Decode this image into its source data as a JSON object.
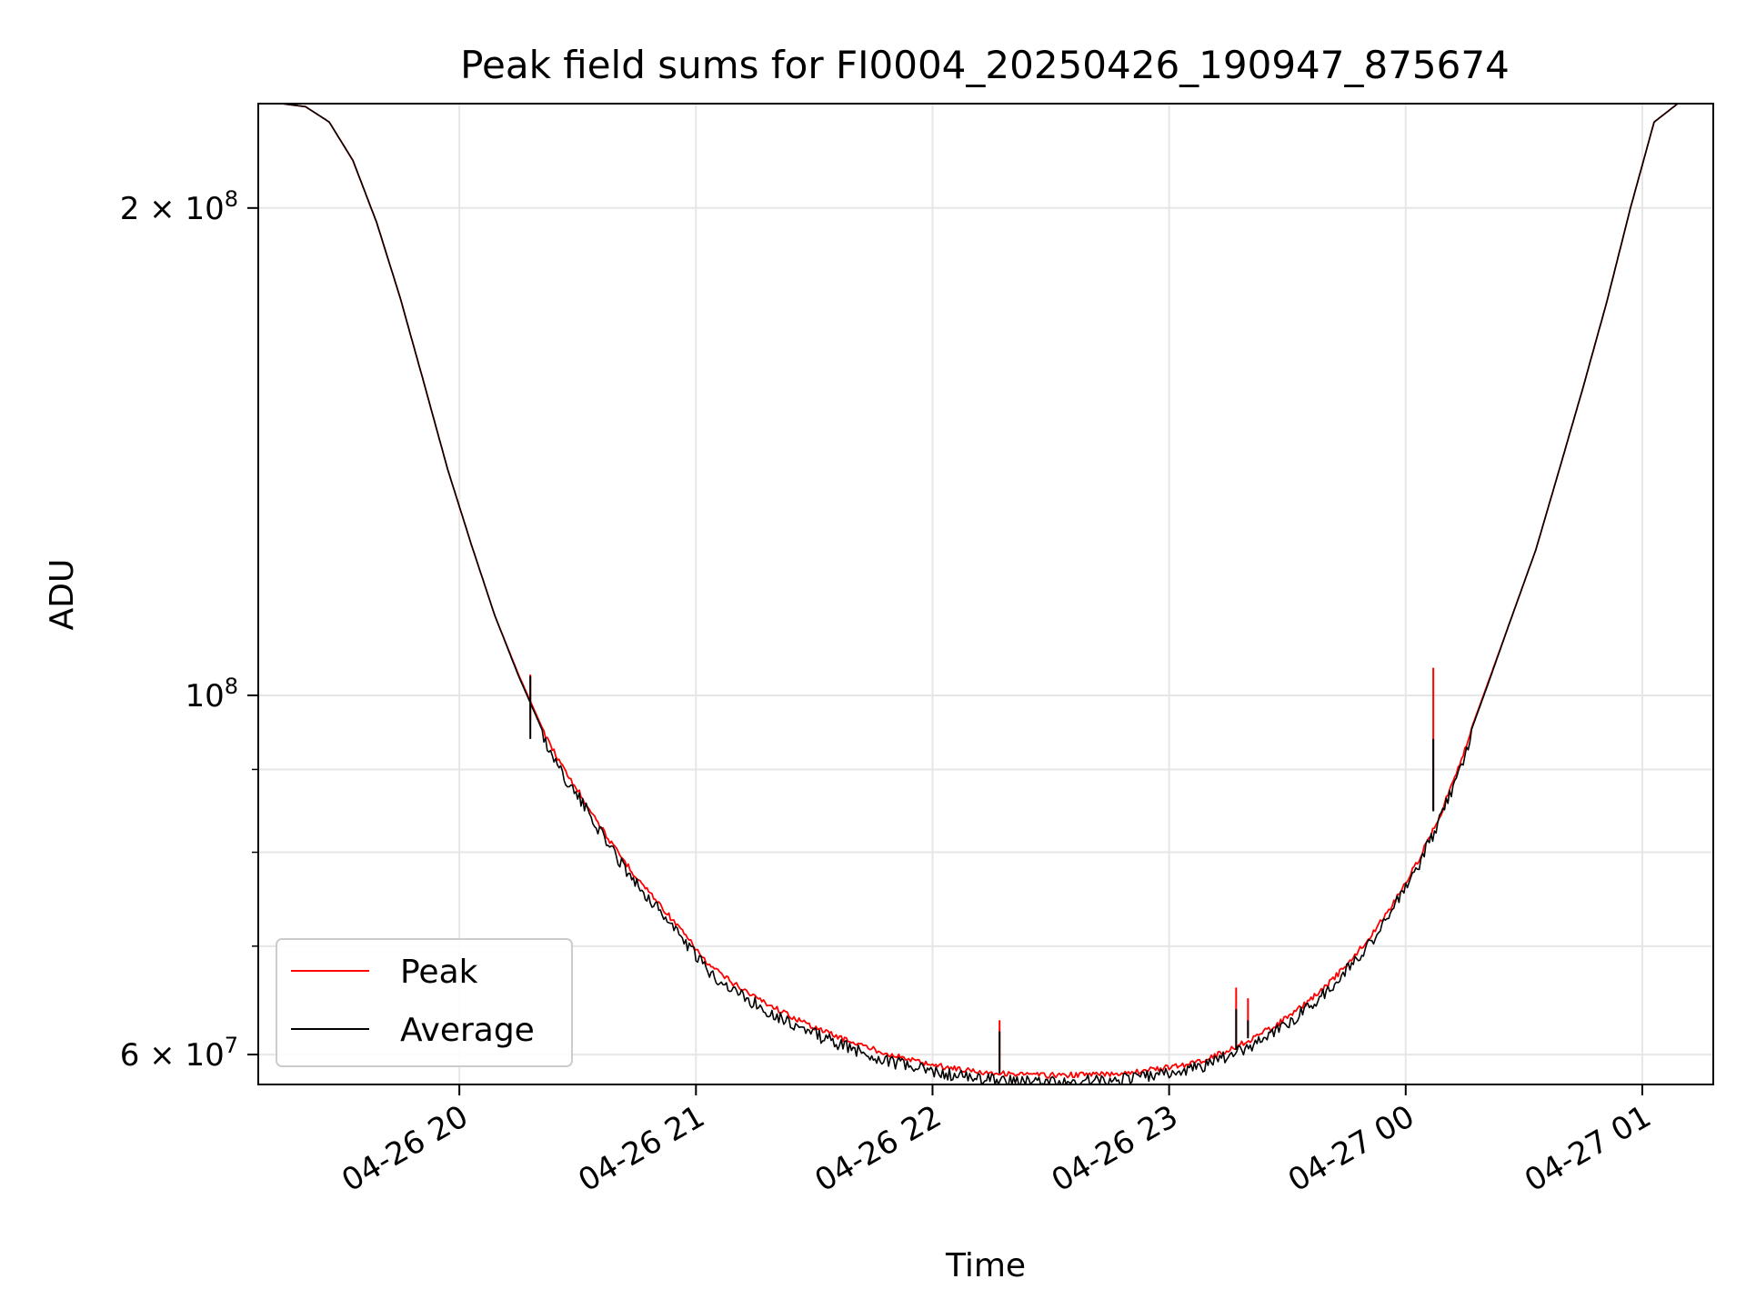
{
  "chart_data": {
    "type": "line",
    "title": "Peak field sums for FI0004_20250426_190947_875674",
    "xlabel": "Time",
    "ylabel": "ADU",
    "y_scale": "log",
    "grid": true,
    "legend_position": "lower-left",
    "xlim": [
      "2025-04-26 19:09",
      "2025-04-27 01:18"
    ],
    "ylim": [
      57500000,
      232000000
    ],
    "x_ticks": [
      {
        "value": "2025-04-26 20:00",
        "label": "04-26 20"
      },
      {
        "value": "2025-04-26 21:00",
        "label": "04-26 21"
      },
      {
        "value": "2025-04-26 22:00",
        "label": "04-26 22"
      },
      {
        "value": "2025-04-26 23:00",
        "label": "04-26 23"
      },
      {
        "value": "2025-04-27 00:00",
        "label": "04-27 00"
      },
      {
        "value": "2025-04-27 01:00",
        "label": "04-27 01"
      }
    ],
    "y_ticks_major": [
      {
        "value": 60000000,
        "base": "6 × 10",
        "exp": "7"
      },
      {
        "value": 100000000,
        "base": "10",
        "exp": "8"
      },
      {
        "value": 200000000,
        "base": "2 × 10",
        "exp": "8"
      }
    ],
    "y_ticks_minor": [
      70000000,
      80000000,
      90000000
    ],
    "x": [
      "2025-04-26 19:09",
      "2025-04-26 19:15",
      "2025-04-26 19:21",
      "2025-04-26 19:27",
      "2025-04-26 19:33",
      "2025-04-26 19:39",
      "2025-04-26 19:45",
      "2025-04-26 19:51",
      "2025-04-26 19:57",
      "2025-04-26 20:03",
      "2025-04-26 20:09",
      "2025-04-26 20:15",
      "2025-04-26 20:21",
      "2025-04-26 20:27",
      "2025-04-26 20:33",
      "2025-04-26 20:39",
      "2025-04-26 20:45",
      "2025-04-26 20:51",
      "2025-04-26 20:57",
      "2025-04-26 21:03",
      "2025-04-26 21:09",
      "2025-04-26 21:15",
      "2025-04-26 21:21",
      "2025-04-26 21:27",
      "2025-04-26 21:33",
      "2025-04-26 21:39",
      "2025-04-26 21:45",
      "2025-04-26 21:51",
      "2025-04-26 21:57",
      "2025-04-26 22:03",
      "2025-04-26 22:09",
      "2025-04-26 22:15",
      "2025-04-26 22:21",
      "2025-04-26 22:27",
      "2025-04-26 22:33",
      "2025-04-26 22:39",
      "2025-04-26 22:45",
      "2025-04-26 22:51",
      "2025-04-26 22:57",
      "2025-04-26 23:03",
      "2025-04-26 23:09",
      "2025-04-26 23:15",
      "2025-04-26 23:21",
      "2025-04-26 23:27",
      "2025-04-26 23:33",
      "2025-04-26 23:39",
      "2025-04-26 23:45",
      "2025-04-26 23:51",
      "2025-04-26 23:57",
      "2025-04-27 00:03",
      "2025-04-27 00:09",
      "2025-04-27 00:15",
      "2025-04-27 00:21",
      "2025-04-27 00:27",
      "2025-04-27 00:33",
      "2025-04-27 00:39",
      "2025-04-27 00:45",
      "2025-04-27 00:51",
      "2025-04-27 00:57",
      "2025-04-27 01:03",
      "2025-04-27 01:09",
      "2025-04-27 01:15"
    ],
    "series": [
      {
        "name": "Peak",
        "color": "#ff0000",
        "values": [
          232000000,
          232000000,
          231000000,
          226000000,
          214000000,
          196000000,
          176000000,
          156000000,
          138000000,
          124000000,
          112000000,
          103000000,
          95500000,
          90000000,
          85500000,
          81000000,
          77500000,
          74500000,
          71500000,
          68500000,
          66800000,
          65400000,
          64200000,
          63100000,
          62200000,
          61400000,
          60700000,
          60100000,
          59600000,
          59200000,
          58900000,
          58700000,
          58600000,
          58500000,
          58500000,
          58550000,
          58600000,
          58800000,
          59000000,
          59300000,
          59800000,
          60600000,
          61600000,
          62800000,
          64300000,
          66100000,
          68400000,
          71200000,
          74800000,
          79200000,
          85000000,
          93000000,
          102000000,
          112000000,
          123000000,
          138000000,
          155000000,
          175000000,
          200000000,
          226000000,
          232000000,
          232000000
        ]
      },
      {
        "name": "Average",
        "color": "#000000",
        "values": [
          232000000,
          232000000,
          231000000,
          226000000,
          214000000,
          196000000,
          176000000,
          156000000,
          138000000,
          124000000,
          112000000,
          102800000,
          95200000,
          89600000,
          85200000,
          80800000,
          77200000,
          74200000,
          71200000,
          68200000,
          66500000,
          65100000,
          63900000,
          62800000,
          61900000,
          61100000,
          60400000,
          59800000,
          59300000,
          58900000,
          58600000,
          58400000,
          58300000,
          58200000,
          58200000,
          58300000,
          58400000,
          58600000,
          58800000,
          59100000,
          59600000,
          60400000,
          61400000,
          62600000,
          64100000,
          65900000,
          68200000,
          71000000,
          74600000,
          79000000,
          84800000,
          92800000,
          101800000,
          112000000,
          123000000,
          138000000,
          155000000,
          175000000,
          200000000,
          226000000,
          232000000,
          232000000
        ]
      }
    ],
    "spikes": [
      {
        "x": "2025-04-26 20:18",
        "peak": 96500000,
        "average": 94000000
      },
      {
        "x": "2025-04-26 22:17",
        "peak": 63000000,
        "average": 62000000
      },
      {
        "x": "2025-04-26 23:17",
        "peak": 66000000,
        "average": 64000000
      },
      {
        "x": "2025-04-26 23:20",
        "peak": 65000000,
        "average": 63000000
      },
      {
        "x": "2025-04-27 00:07",
        "peak": 104000000,
        "average": 94000000
      }
    ]
  }
}
